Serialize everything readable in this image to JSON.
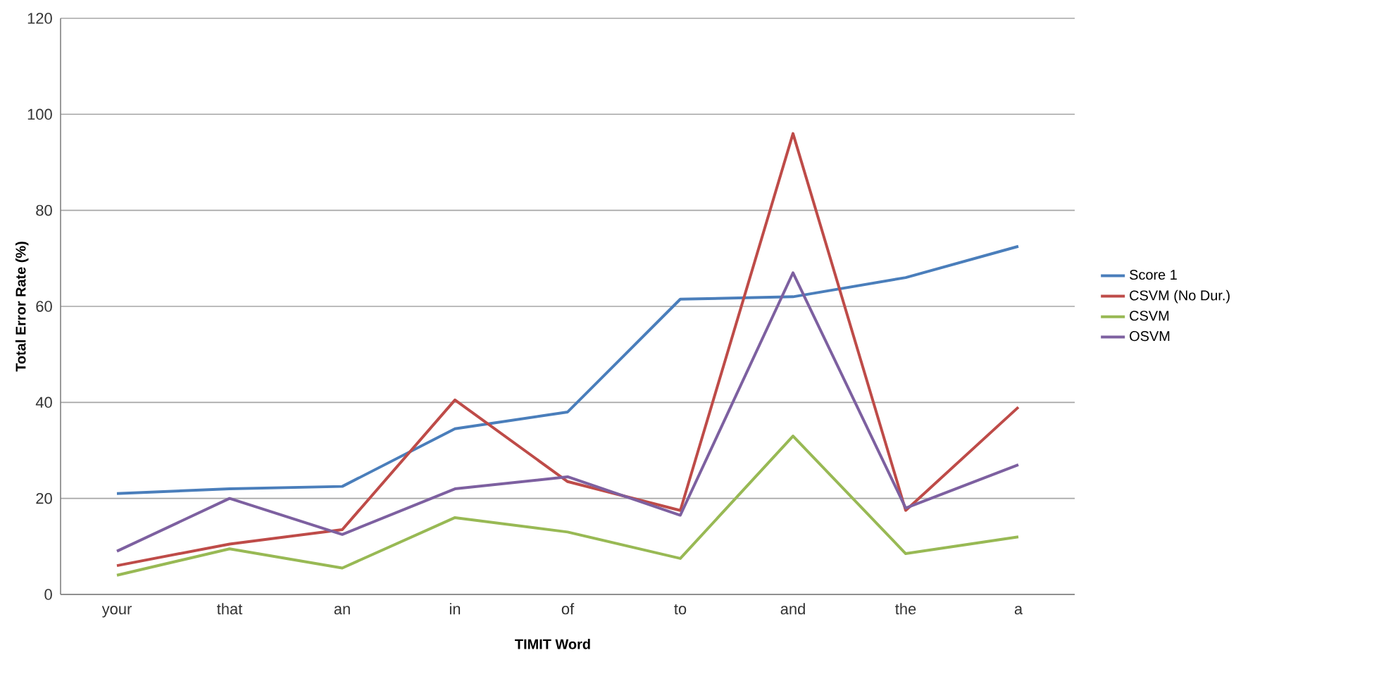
{
  "chart_data": {
    "type": "line",
    "xlabel": "TIMIT Word",
    "ylabel": "Total Error Rate (%)",
    "categories": [
      "your",
      "that",
      "an",
      "in",
      "of",
      "to",
      "and",
      "the",
      "a"
    ],
    "series": [
      {
        "name": "Score 1",
        "color": "#4a7ebb",
        "values": [
          21,
          22,
          22.5,
          34.5,
          38,
          61.5,
          62,
          66,
          72.5
        ]
      },
      {
        "name": "CSVM (No Dur.)",
        "color": "#be4b48",
        "values": [
          6,
          10.5,
          13.5,
          40.5,
          23.5,
          17.5,
          96,
          17.5,
          39
        ]
      },
      {
        "name": "CSVM",
        "color": "#98b954",
        "values": [
          4,
          9.5,
          5.5,
          16,
          13,
          7.5,
          33,
          8.5,
          12
        ]
      },
      {
        "name": "OSVM",
        "color": "#7d60a0",
        "values": [
          9,
          20,
          12.5,
          22,
          24.5,
          16.5,
          67,
          18,
          27
        ]
      }
    ],
    "ylim": [
      0,
      120
    ],
    "yticks": [
      0,
      20,
      40,
      60,
      80,
      100,
      120
    ],
    "grid": "y",
    "legend": "right",
    "marker": "none",
    "line_style": "solid"
  }
}
